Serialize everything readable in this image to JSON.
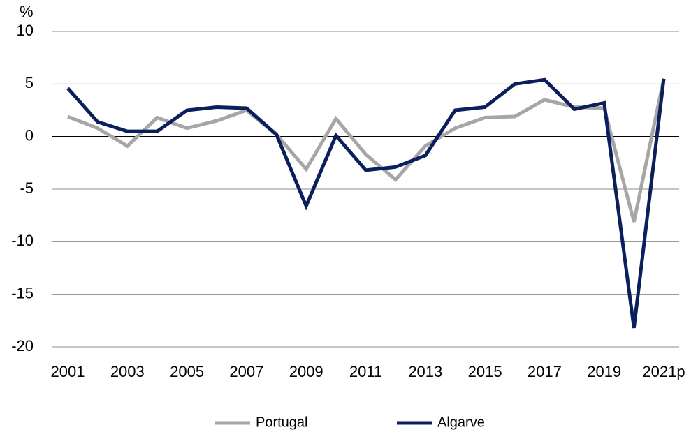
{
  "chart_data": {
    "type": "line",
    "y_label": "%",
    "categories": [
      "2001",
      null,
      "2003",
      null,
      "2005",
      null,
      "2007",
      null,
      "2009",
      null,
      "2011",
      null,
      "2013",
      null,
      "2015",
      null,
      "2017",
      null,
      "2019",
      null,
      "2021p"
    ],
    "series": [
      {
        "name": "Portugal",
        "color": "#a6a6a6",
        "values": [
          1.9,
          0.8,
          -0.9,
          1.8,
          0.8,
          1.5,
          2.5,
          0.2,
          -3.1,
          1.7,
          -1.7,
          -4.1,
          -0.9,
          0.8,
          1.8,
          1.9,
          3.5,
          2.8,
          2.7,
          -8.1,
          5.5
        ]
      },
      {
        "name": "Algarve",
        "color": "#0b1f5c",
        "values": [
          4.6,
          1.4,
          0.5,
          0.5,
          2.5,
          2.8,
          2.7,
          0.2,
          -6.6,
          0.1,
          -3.2,
          -2.9,
          -1.8,
          2.5,
          2.8,
          5.0,
          5.4,
          2.6,
          3.2,
          -18.2,
          5.5
        ]
      }
    ],
    "ylim": [
      -20,
      10
    ],
    "yticks": [
      -20,
      -15,
      -10,
      -5,
      0,
      5,
      10
    ],
    "grid": true,
    "legend": "bottom"
  }
}
